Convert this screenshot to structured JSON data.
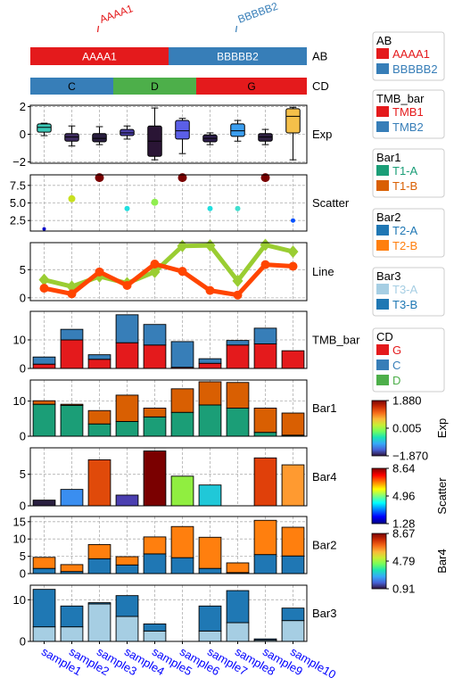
{
  "samples": [
    "sample1",
    "sample2",
    "sample3",
    "sample4",
    "sample5",
    "sample6",
    "sample7",
    "sample8",
    "sample9",
    "sample10"
  ],
  "colors": {
    "red": "#e41a1c",
    "blue": "#377eb8",
    "green": "#4daf4a",
    "teal": "#1b9e77",
    "orange_dark": "#d95f02",
    "blue2": "#1f77b4",
    "orange2": "#ff7f0e",
    "lightblue": "#a6cee3",
    "blue3": "#1f78b4",
    "line_green": "#9acd32",
    "line_orange": "#ff4500",
    "sample_label": "#0000ff"
  },
  "annotations": {
    "AB": {
      "label": "AB",
      "segments": [
        {
          "text": "AAAA1",
          "start": 0,
          "end": 5,
          "color": "#e41a1c"
        },
        {
          "text": "BBBBB2",
          "start": 5,
          "end": 10,
          "color": "#377eb8"
        }
      ],
      "top_labels": [
        {
          "text": "AAAA1",
          "at": 2.5,
          "color": "#e41a1c"
        },
        {
          "text": "BBBBB2",
          "at": 7.5,
          "color": "#377eb8"
        }
      ]
    },
    "CD": {
      "label": "CD",
      "segments": [
        {
          "text": "C",
          "start": 0,
          "end": 3,
          "color": "#377eb8"
        },
        {
          "text": "D",
          "start": 3,
          "end": 6,
          "color": "#4daf4a"
        },
        {
          "text": "G",
          "start": 6,
          "end": 10,
          "color": "#e41a1c"
        }
      ]
    }
  },
  "chart_data": [
    {
      "type": "box",
      "label": "Exp",
      "ylim": [
        -2.1,
        2.1
      ],
      "yticks": [
        -2,
        0,
        2
      ],
      "boxes": [
        {
          "q1": 0.15,
          "med": 0.5,
          "q3": 0.75,
          "lo": -0.1,
          "hi": 0.8,
          "color": "#3cc9b8"
        },
        {
          "q1": -0.5,
          "med": -0.2,
          "q3": 0.05,
          "lo": -0.85,
          "hi": 0.6,
          "color": "#3d2b5e"
        },
        {
          "q1": -0.55,
          "med": -0.3,
          "q3": 0.05,
          "lo": -0.75,
          "hi": 0.55,
          "color": "#2a1f40"
        },
        {
          "q1": -0.1,
          "med": 0.1,
          "q3": 0.35,
          "lo": -0.35,
          "hi": 0.6,
          "color": "#4b3fa8"
        },
        {
          "q1": -1.6,
          "med": -0.5,
          "q3": 0.6,
          "lo": -1.85,
          "hi": 1.9,
          "color": "#2a1535"
        },
        {
          "q1": -0.35,
          "med": 0.25,
          "q3": 1.0,
          "lo": -1.4,
          "hi": 1.15,
          "color": "#5b5fe8"
        },
        {
          "q1": -0.55,
          "med": -0.3,
          "q3": -0.05,
          "lo": -0.75,
          "hi": 0.1,
          "color": "#2d1e4a"
        },
        {
          "q1": -0.15,
          "med": 0.25,
          "q3": 0.75,
          "lo": -0.5,
          "hi": 1.0,
          "color": "#3a9ef0"
        },
        {
          "q1": -0.5,
          "med": -0.2,
          "q3": 0.05,
          "lo": -0.75,
          "hi": 0.35,
          "color": "#2d2040"
        },
        {
          "q1": 0.1,
          "med": 1.3,
          "q3": 1.85,
          "lo": -1.85,
          "hi": 1.95,
          "color": "#f5c04a"
        }
      ]
    },
    {
      "type": "scatter",
      "label": "Scatter",
      "ylim": [
        1.0,
        9.0
      ],
      "yticks": [
        2.5,
        5.0,
        7.5
      ],
      "ytick_labels": [
        "2.5",
        "5.0",
        "7.5"
      ],
      "points": [
        {
          "y": 1.3,
          "size": 2,
          "color": "#0000c8"
        },
        {
          "y": 5.6,
          "size": 4,
          "color": "#c8e020"
        },
        {
          "y": 8.6,
          "size": 5,
          "color": "#7a0000"
        },
        {
          "y": 4.2,
          "size": 3,
          "color": "#20e0e0"
        },
        {
          "y": 5.1,
          "size": 4,
          "color": "#90ee50"
        },
        {
          "y": 8.6,
          "size": 5,
          "color": "#7a0000"
        },
        {
          "y": 4.2,
          "size": 3,
          "color": "#20e0e0"
        },
        {
          "y": 4.2,
          "size": 3,
          "color": "#40e0d0"
        },
        {
          "y": 8.6,
          "size": 5,
          "color": "#7a0000"
        },
        {
          "y": 2.5,
          "size": 2.5,
          "color": "#0050ff"
        }
      ]
    },
    {
      "type": "line",
      "label": "Line",
      "ylim": [
        -0.5,
        9.8
      ],
      "yticks": [
        0,
        5
      ],
      "series": [
        {
          "values": [
            3.2,
            2.0,
            3.8,
            2.6,
            4.6,
            9.2,
            9.3,
            3.0,
            9.4,
            8.2
          ],
          "color": "#9acd32",
          "marker": "diamond"
        },
        {
          "values": [
            1.7,
            0.7,
            4.6,
            2.2,
            6.0,
            4.7,
            1.3,
            0.5,
            5.9,
            5.6
          ],
          "color": "#ff4500",
          "marker": "circle"
        }
      ]
    },
    {
      "type": "stacked_bar",
      "label": "TMB_bar",
      "ylim": [
        0,
        20
      ],
      "yticks": [
        0,
        10
      ],
      "series": [
        {
          "name": "TMB1",
          "values": [
            1.5,
            10,
            3.2,
            9,
            8.2,
            0.4,
            1.8,
            8.2,
            8.6,
            6.2
          ],
          "color": "#e41a1c"
        },
        {
          "name": "TMB2",
          "values": [
            2.5,
            3.7,
            1.6,
            9.8,
            7.2,
            9,
            1.6,
            1.6,
            5.5,
            0
          ],
          "color": "#377eb8"
        }
      ]
    },
    {
      "type": "stacked_bar",
      "label": "Bar1",
      "ylim": [
        0,
        16
      ],
      "yticks": [
        0,
        10
      ],
      "series": [
        {
          "name": "T1-A",
          "values": [
            9.1,
            8.8,
            3.5,
            4.2,
            5.5,
            6.8,
            8.9,
            8.0,
            1.1,
            0.3
          ],
          "color": "#1b9e77"
        },
        {
          "name": "T1-B",
          "values": [
            1.0,
            0.3,
            3.8,
            7.5,
            2.5,
            6.7,
            6.6,
            7.3,
            6.9,
            6.3
          ],
          "color": "#d95f02"
        }
      ]
    },
    {
      "type": "color_bar",
      "label": "Bar4",
      "ylim": [
        0,
        9.2
      ],
      "yticks": [
        0,
        5
      ],
      "bars": [
        {
          "value": 0.9,
          "color": "#2a1f40"
        },
        {
          "value": 2.6,
          "color": "#3a8ef0"
        },
        {
          "value": 7.3,
          "color": "#e04a0a"
        },
        {
          "value": 1.7,
          "color": "#4b3fb0"
        },
        {
          "value": 8.7,
          "color": "#7a0000"
        },
        {
          "value": 4.7,
          "color": "#90ee40"
        },
        {
          "value": 3.3,
          "color": "#20c8d8"
        },
        {
          "value": 0,
          "color": "#ffffff"
        },
        {
          "value": 7.6,
          "color": "#e0400a"
        },
        {
          "value": 6.5,
          "color": "#ff9a30"
        }
      ]
    },
    {
      "type": "stacked_bar",
      "label": "Bar2",
      "ylim": [
        0,
        16.5
      ],
      "yticks": [
        0,
        5,
        10,
        15
      ],
      "series": [
        {
          "name": "T2-A",
          "values": [
            1.5,
            0.6,
            4.3,
            2.5,
            5.7,
            4.6,
            1.5,
            0.3,
            5.5,
            5.1
          ],
          "color": "#1f77b4"
        },
        {
          "name": "T2-B",
          "values": [
            3.2,
            2.0,
            4.1,
            2.4,
            4.9,
            9.0,
            9.0,
            2.8,
            9.9,
            8.3
          ],
          "color": "#ff7f0e"
        }
      ]
    },
    {
      "type": "stacked_bar",
      "label": "Bar3",
      "ylim": [
        0,
        13.5
      ],
      "yticks": [
        0,
        10
      ],
      "series": [
        {
          "name": "T3-A",
          "values": [
            3.5,
            3.5,
            9.0,
            6.0,
            2.5,
            0,
            2.5,
            4.5,
            0.3,
            5.0
          ],
          "color": "#a6cee3"
        },
        {
          "name": "T3-B",
          "values": [
            9.0,
            5.0,
            0.3,
            5.0,
            1.7,
            0,
            6.0,
            7.7,
            0.3,
            3.0
          ],
          "color": "#1f78b4"
        }
      ]
    }
  ],
  "legends": [
    {
      "title": "AB",
      "items": [
        {
          "label": "AAAA1",
          "color": "#e41a1c"
        },
        {
          "label": "BBBBB2",
          "color": "#377eb8"
        }
      ]
    },
    {
      "title": "TMB_bar",
      "items": [
        {
          "label": "TMB1",
          "color": "#e41a1c"
        },
        {
          "label": "TMB2",
          "color": "#377eb8"
        }
      ]
    },
    {
      "title": "Bar1",
      "items": [
        {
          "label": "T1-A",
          "color": "#1b9e77"
        },
        {
          "label": "T1-B",
          "color": "#d95f02"
        }
      ]
    },
    {
      "title": "Bar2",
      "items": [
        {
          "label": "T2-A",
          "color": "#1f77b4"
        },
        {
          "label": "T2-B",
          "color": "#ff7f0e"
        }
      ]
    },
    {
      "title": "Bar3",
      "items": [
        {
          "label": "T3-A",
          "color": "#a6cee3"
        },
        {
          "label": "T3-B",
          "color": "#1f78b4"
        }
      ]
    },
    {
      "title": "CD",
      "items": [
        {
          "label": "G",
          "color": "#e41a1c"
        },
        {
          "label": "C",
          "color": "#377eb8"
        },
        {
          "label": "D",
          "color": "#4daf4a"
        }
      ]
    }
  ],
  "colorbars": [
    {
      "label": "Exp",
      "ticks": [
        "1.880",
        "0.005",
        "−1.870"
      ],
      "cmap": "turbo"
    },
    {
      "label": "Scatter",
      "ticks": [
        "8.64",
        "4.96",
        "1.28"
      ],
      "cmap": "jet"
    },
    {
      "label": "Bar4",
      "ticks": [
        "8.67",
        "4.79",
        "0.91"
      ],
      "cmap": "turbo"
    }
  ]
}
